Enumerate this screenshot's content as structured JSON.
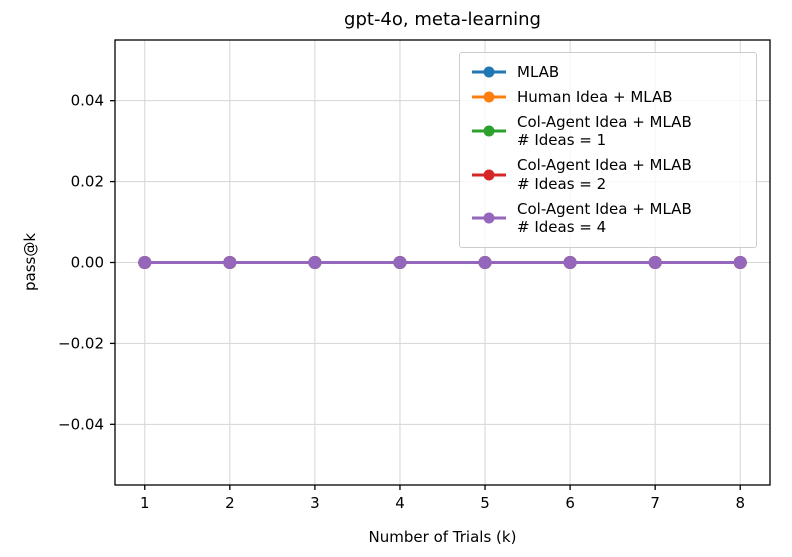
{
  "chart_data": {
    "type": "line",
    "title": "gpt-4o, meta-learning",
    "xlabel": "Number of Trials (k)",
    "ylabel": "pass@k",
    "x": [
      1,
      2,
      3,
      4,
      5,
      6,
      7,
      8
    ],
    "xticks": [
      1,
      2,
      3,
      4,
      5,
      6,
      7,
      8
    ],
    "yticks": [
      -0.04,
      -0.02,
      0.0,
      0.02,
      0.04
    ],
    "xlim": [
      0.65,
      8.35
    ],
    "ylim": [
      -0.055,
      0.055
    ],
    "grid": true,
    "legend_position": "upper right",
    "series": [
      {
        "name": "MLAB",
        "color": "#1f77b4",
        "values": [
          0,
          0,
          0,
          0,
          0,
          0,
          0,
          0
        ]
      },
      {
        "name": "Human Idea + MLAB",
        "color": "#ff7f0e",
        "values": [
          0,
          0,
          0,
          0,
          0,
          0,
          0,
          0
        ]
      },
      {
        "name": "Col-Agent Idea + MLAB\n# Ideas = 1",
        "color": "#2ca02c",
        "values": [
          0,
          0,
          0,
          0,
          0,
          0,
          0,
          0
        ]
      },
      {
        "name": "Col-Agent Idea + MLAB\n# Ideas = 2",
        "color": "#d62728",
        "values": [
          0,
          0,
          0,
          0,
          0,
          0,
          0,
          0
        ]
      },
      {
        "name": "Col-Agent Idea + MLAB\n# Ideas = 4",
        "color": "#9467bd",
        "values": [
          0,
          0,
          0,
          0,
          0,
          0,
          0,
          0
        ]
      }
    ]
  }
}
